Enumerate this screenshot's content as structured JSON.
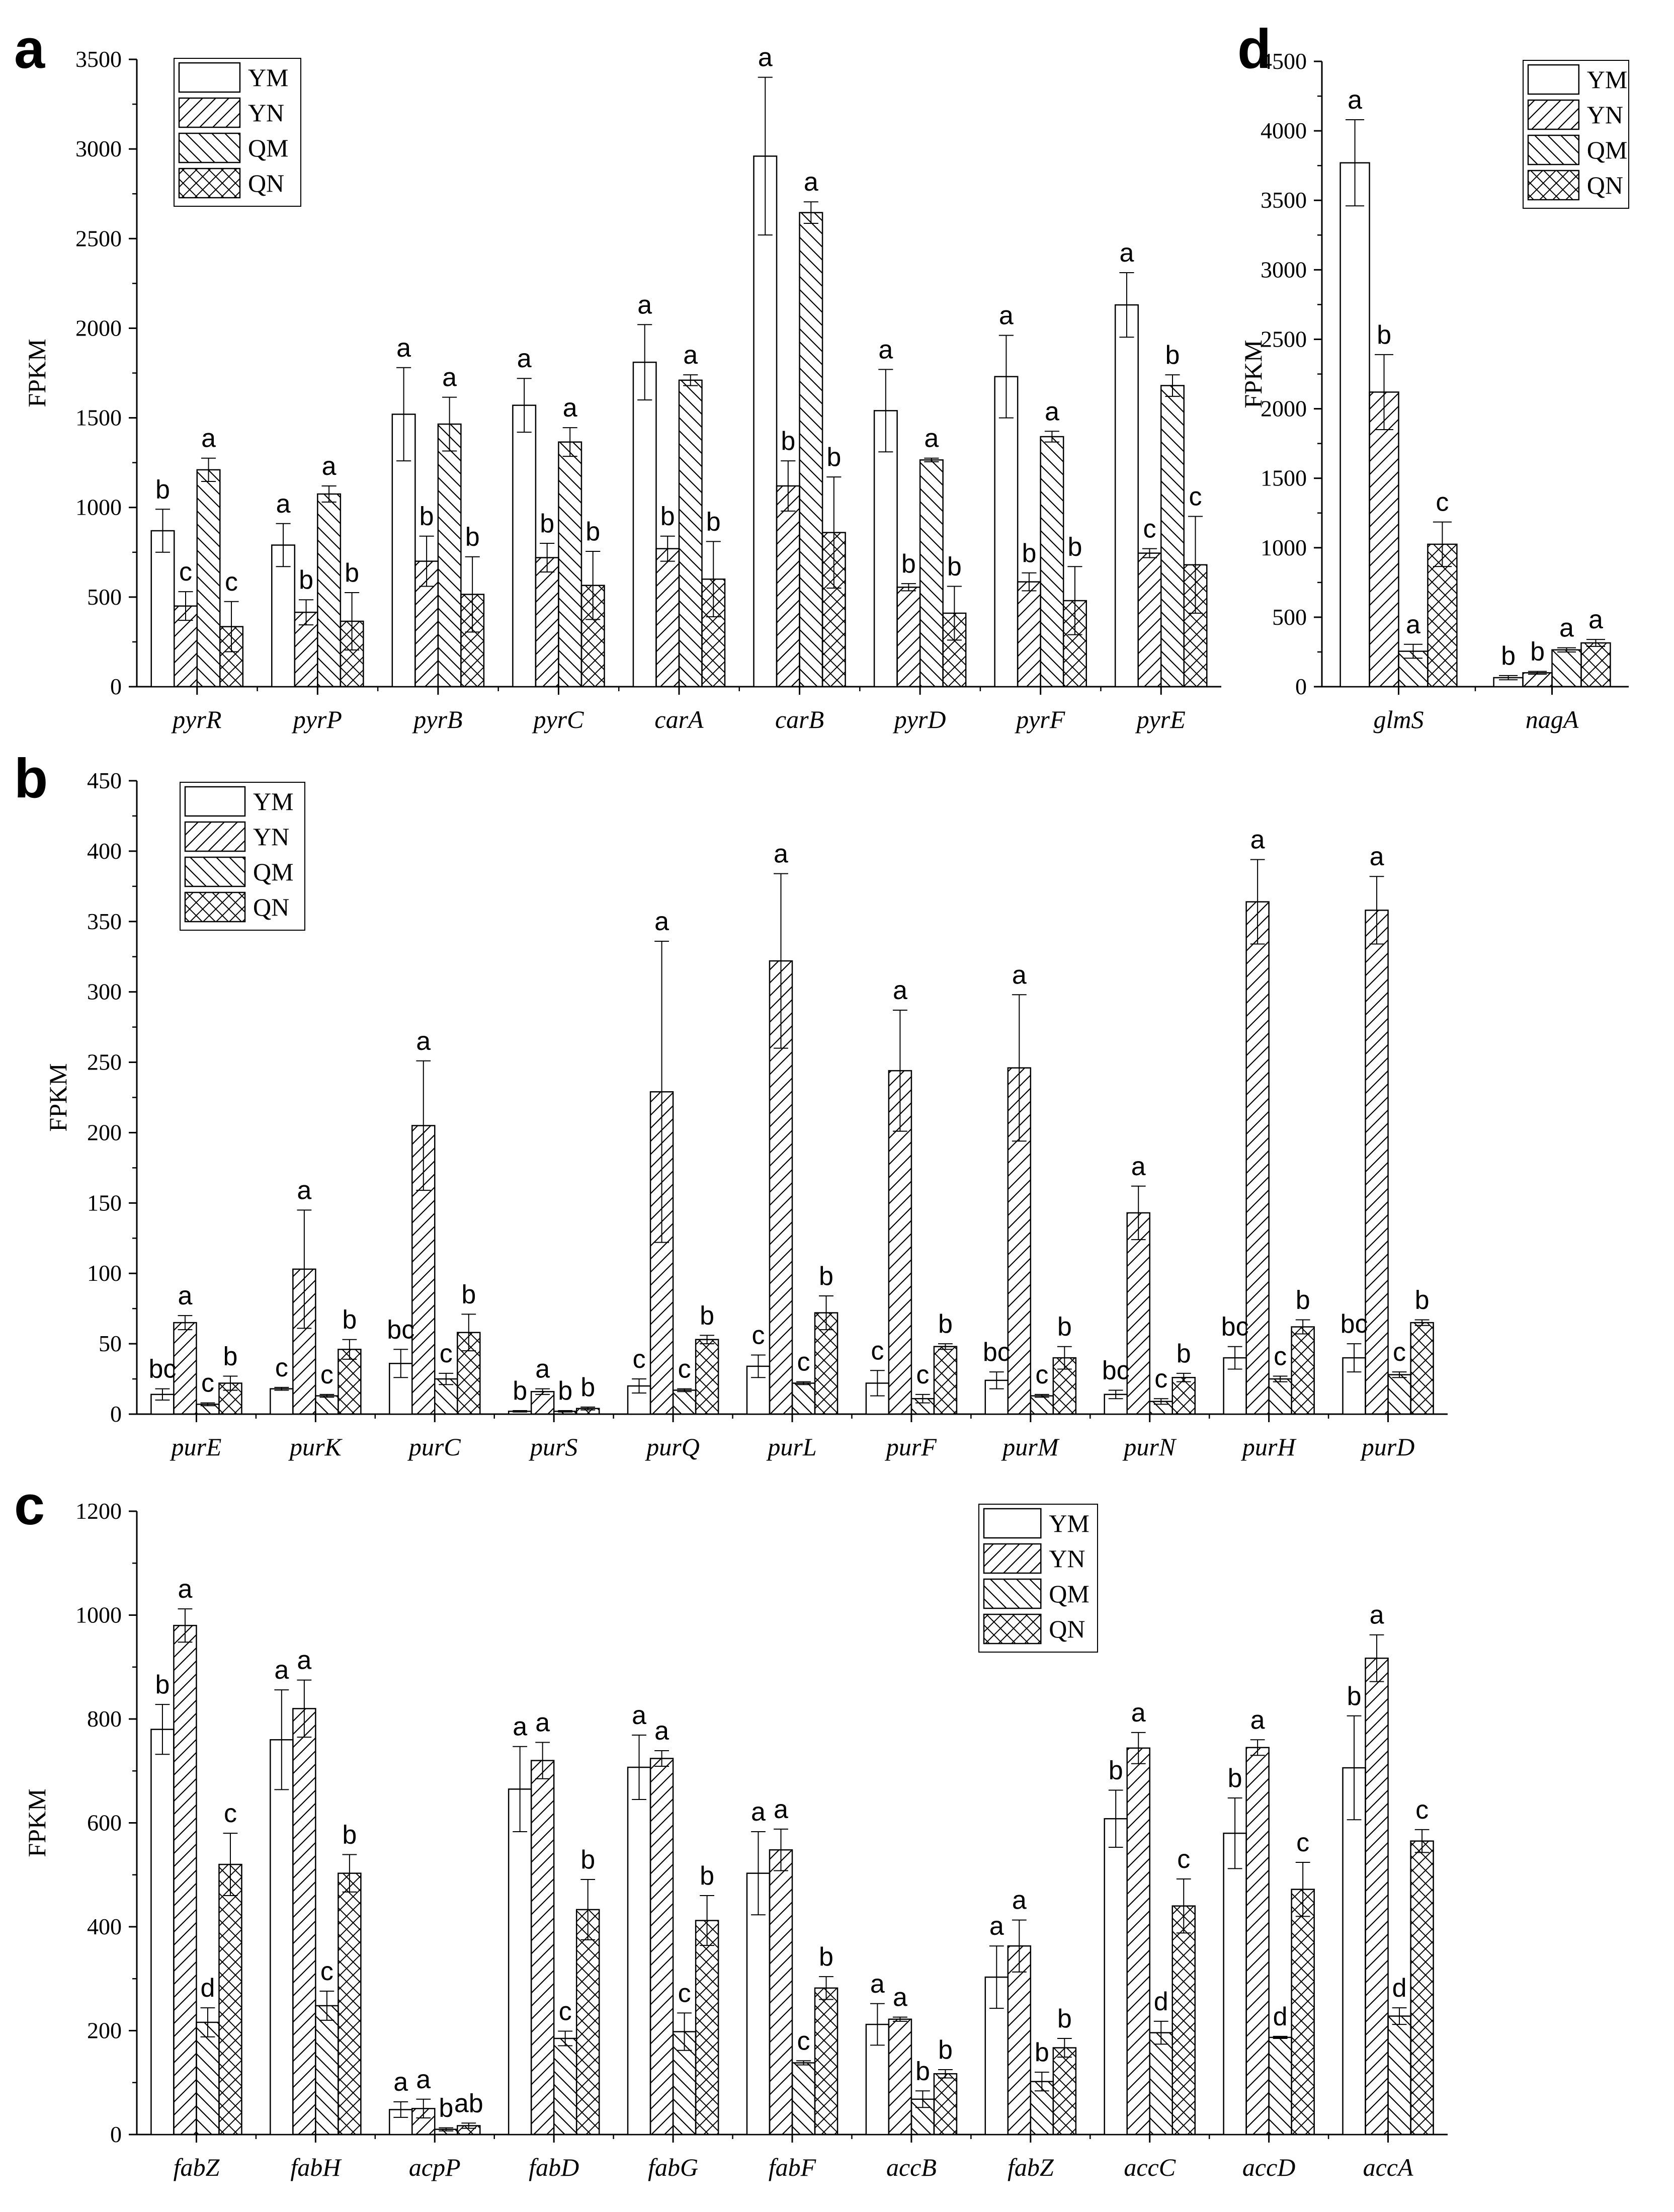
{
  "series_order": [
    "YM",
    "YN",
    "QM",
    "QN"
  ],
  "chart_data": [
    {
      "id": "a",
      "type": "bar",
      "panel_label": "a",
      "ylabel": "FPKM",
      "ylim": [
        0,
        3500
      ],
      "yticks": [
        0,
        500,
        1000,
        1500,
        2000,
        2500,
        3000,
        3500
      ],
      "legend_position": "top-left",
      "categories": [
        "pyrR",
        "pyrP",
        "pyrB",
        "pyrC",
        "carA",
        "carB",
        "pyrD",
        "pyrF",
        "pyrE"
      ],
      "series": [
        {
          "name": "YM",
          "values": [
            870,
            790,
            1520,
            1570,
            1810,
            2960,
            1540,
            1730,
            2130
          ],
          "errors": [
            120,
            120,
            260,
            150,
            210,
            440,
            230,
            230,
            180
          ],
          "letters": [
            "b",
            "a",
            "a",
            "a",
            "a",
            "a",
            "a",
            "a",
            "a"
          ]
        },
        {
          "name": "YN",
          "values": [
            450,
            415,
            700,
            720,
            770,
            1120,
            555,
            585,
            745
          ],
          "errors": [
            80,
            70,
            140,
            80,
            70,
            140,
            20,
            50,
            25
          ],
          "letters": [
            "c",
            "b",
            "b",
            "b",
            "b",
            "b",
            "b",
            "b",
            "c"
          ]
        },
        {
          "name": "QM",
          "values": [
            1210,
            1075,
            1465,
            1365,
            1710,
            2645,
            1265,
            1395,
            1680
          ],
          "errors": [
            65,
            45,
            150,
            80,
            30,
            60,
            10,
            30,
            60
          ],
          "letters": [
            "a",
            "a",
            "a",
            "a",
            "a",
            "a",
            "a",
            "a",
            "b"
          ]
        },
        {
          "name": "QN",
          "values": [
            335,
            365,
            515,
            565,
            600,
            860,
            410,
            480,
            680
          ],
          "errors": [
            140,
            160,
            210,
            190,
            210,
            310,
            150,
            190,
            270
          ],
          "letters": [
            "c",
            "b",
            "b",
            "b",
            "b",
            "b",
            "b",
            "b",
            "c"
          ]
        }
      ]
    },
    {
      "id": "d",
      "type": "bar",
      "panel_label": "d",
      "ylabel": "FPKM",
      "ylim": [
        0,
        4500
      ],
      "yticks": [
        0,
        500,
        1000,
        1500,
        2000,
        2500,
        3000,
        3500,
        4000,
        4500
      ],
      "legend_position": "top-right",
      "categories": [
        "glmS",
        "nagA"
      ],
      "series": [
        {
          "name": "YM",
          "values": [
            3770,
            65
          ],
          "errors": [
            310,
            15
          ],
          "letters": [
            "a",
            "b"
          ]
        },
        {
          "name": "YN",
          "values": [
            2120,
            100
          ],
          "errors": [
            270,
            10
          ],
          "letters": [
            "b",
            "b"
          ]
        },
        {
          "name": "QM",
          "values": [
            255,
            265
          ],
          "errors": [
            50,
            15
          ],
          "letters": [
            "a",
            "a"
          ]
        },
        {
          "name": "QN",
          "values": [
            1025,
            315
          ],
          "errors": [
            160,
            25
          ],
          "letters": [
            "c",
            "a"
          ]
        }
      ]
    },
    {
      "id": "b",
      "type": "bar",
      "panel_label": "b",
      "ylabel": "FPKM",
      "ylim": [
        0,
        450
      ],
      "yticks": [
        0,
        50,
        100,
        150,
        200,
        250,
        300,
        350,
        400,
        450
      ],
      "legend_position": "top-left",
      "categories": [
        "purE",
        "purK",
        "purC",
        "purS",
        "purQ",
        "purL",
        "purF",
        "purM",
        "purN",
        "purH",
        "purD"
      ],
      "series": [
        {
          "name": "YM",
          "values": [
            14,
            18,
            36,
            2,
            20,
            34,
            22,
            24,
            14,
            40,
            40
          ],
          "errors": [
            4,
            1,
            10,
            0.5,
            5,
            8,
            9,
            6,
            3,
            8,
            10
          ],
          "letters": [
            "bc",
            "c",
            "bc",
            "b",
            "c",
            "c",
            "c",
            "bc",
            "bc",
            "bc",
            "bc"
          ]
        },
        {
          "name": "YN",
          "values": [
            65,
            103,
            205,
            16,
            229,
            322,
            244,
            246,
            143,
            364,
            358
          ],
          "errors": [
            5,
            42,
            46,
            2,
            107,
            62,
            43,
            52,
            19,
            30,
            24
          ],
          "letters": [
            "a",
            "a",
            "a",
            "a",
            "a",
            "a",
            "a",
            "a",
            "a",
            "a",
            "a"
          ]
        },
        {
          "name": "QM",
          "values": [
            7,
            13,
            25,
            2,
            17,
            22,
            11,
            13,
            9,
            25,
            28
          ],
          "errors": [
            1,
            1,
            4,
            0.5,
            1,
            1,
            3,
            1,
            2,
            2,
            2
          ],
          "letters": [
            "c",
            "c",
            "c",
            "b",
            "c",
            "c",
            "c",
            "c",
            "c",
            "c",
            "c"
          ]
        },
        {
          "name": "QN",
          "values": [
            22,
            46,
            58,
            4,
            53,
            72,
            48,
            40,
            26,
            62,
            65
          ],
          "errors": [
            5,
            7,
            13,
            1,
            3,
            12,
            2,
            8,
            3,
            5,
            2
          ],
          "letters": [
            "b",
            "b",
            "b",
            "b",
            "b",
            "b",
            "b",
            "b",
            "b",
            "b",
            "b"
          ]
        }
      ]
    },
    {
      "id": "c",
      "type": "bar",
      "panel_label": "c",
      "ylabel": "FPKM",
      "ylim": [
        0,
        1200
      ],
      "yticks": [
        0,
        200,
        400,
        600,
        800,
        1000,
        1200
      ],
      "legend_position": "top-right",
      "categories": [
        "fabZ",
        "fabH",
        "acpP",
        "fabD",
        "fabG",
        "fabF",
        "accB",
        "fabZ",
        "accC",
        "accD",
        "accA"
      ],
      "series": [
        {
          "name": "YM",
          "values": [
            780,
            760,
            48,
            665,
            707,
            503,
            212,
            303,
            608,
            580,
            706
          ],
          "errors": [
            48,
            96,
            15,
            82,
            62,
            80,
            40,
            60,
            55,
            68,
            100
          ],
          "letters": [
            "b",
            "a",
            "a",
            "a",
            "a",
            "a",
            "a",
            "a",
            "b",
            "b",
            "b"
          ]
        },
        {
          "name": "YN",
          "values": [
            980,
            820,
            50,
            720,
            724,
            548,
            222,
            363,
            744,
            745,
            917
          ],
          "errors": [
            32,
            55,
            18,
            35,
            15,
            40,
            4,
            50,
            30,
            15,
            45
          ],
          "letters": [
            "a",
            "a",
            "a",
            "a",
            "a",
            "a",
            "a",
            "a",
            "a",
            "a",
            "a"
          ]
        },
        {
          "name": "QM",
          "values": [
            216,
            248,
            10,
            185,
            198,
            138,
            68,
            102,
            196,
            187,
            228
          ],
          "errors": [
            28,
            28,
            3,
            14,
            36,
            4,
            16,
            18,
            22,
            2,
            16
          ],
          "letters": [
            "d",
            "c",
            "b",
            "c",
            "c",
            "c",
            "b",
            "b",
            "d",
            "d",
            "d"
          ]
        },
        {
          "name": "QN",
          "values": [
            520,
            503,
            17,
            433,
            412,
            282,
            117,
            167,
            440,
            472,
            565
          ],
          "errors": [
            60,
            36,
            5,
            58,
            48,
            22,
            8,
            18,
            52,
            52,
            22
          ],
          "letters": [
            "c",
            "b",
            "ab",
            "b",
            "b",
            "b",
            "b",
            "b",
            "c",
            "c",
            "c"
          ]
        }
      ]
    }
  ]
}
